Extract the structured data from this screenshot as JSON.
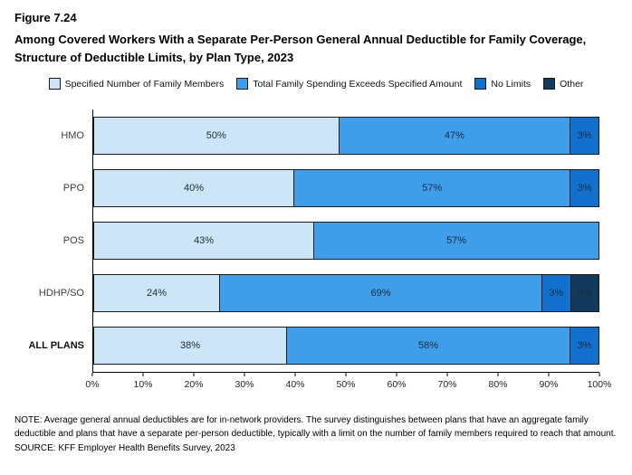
{
  "figure_label": "Figure 7.24",
  "title": "Among Covered Workers With a Separate Per-Person General Annual Deductible for Family Coverage, Structure of Deductible Limits, by Plan Type, 2023",
  "note": "NOTE: Average general annual deductibles are for in-network providers. The survey distinguishes between plans that have an aggregate family deductible and plans that have a separate per-person deductible, typically with a limit on the number of family members required to reach that amount.",
  "source": "SOURCE: KFF Employer Health Benefits Survey, 2023",
  "chart_data": {
    "type": "bar",
    "orientation": "horizontal",
    "stacked": true,
    "title": "Among Covered Workers With a Separate Per-Person General Annual Deductible for Family Coverage, Structure of Deductible Limits, by Plan Type, 2023",
    "categories": [
      "HMO",
      "PPO",
      "POS",
      "HDHP/SO",
      "ALL PLANS"
    ],
    "series": [
      {
        "name": "Specified Number of Family Members",
        "color": "#CDE6F7",
        "values": [
          50,
          40,
          43,
          24,
          38
        ]
      },
      {
        "name": "Total Family Spending Exceeds Specified Amount",
        "color": "#3E9EEA",
        "values": [
          47,
          57,
          57,
          69,
          58
        ]
      },
      {
        "name": "No Limits",
        "color": "#1271CE",
        "values": [
          3,
          3,
          0,
          3,
          3
        ]
      },
      {
        "name": "Other",
        "color": "#123A5C",
        "values": [
          0,
          0,
          0,
          3,
          0
        ]
      }
    ],
    "xlim": [
      0,
      100
    ],
    "x_ticks": [
      "0%",
      "10%",
      "20%",
      "30%",
      "40%",
      "50%",
      "60%",
      "70%",
      "80%",
      "90%",
      "100%"
    ],
    "value_suffix": "%",
    "legend_position": "top",
    "grid": false
  }
}
